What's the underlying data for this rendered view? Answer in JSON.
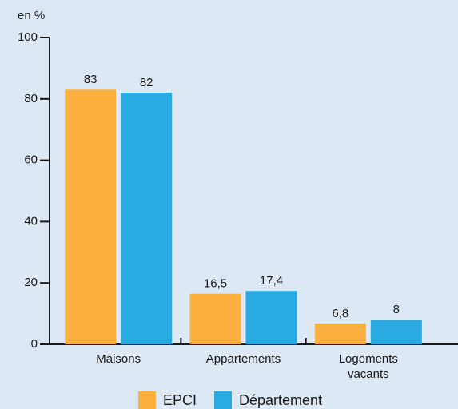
{
  "chart_data": {
    "type": "bar",
    "y_axis_label": "en %",
    "categories": [
      "Maisons",
      "Appartements",
      "Logements vacants"
    ],
    "series": [
      {
        "name": "EPCI",
        "color": "#fbb03f",
        "values": [
          83,
          16.5,
          6.8
        ],
        "value_labels": [
          "83",
          "16,5",
          "6,8"
        ]
      },
      {
        "name": "Département",
        "color": "#29abe2",
        "values": [
          82,
          17.4,
          8
        ],
        "value_labels": [
          "82",
          "17,4",
          "8"
        ]
      }
    ],
    "ylim": [
      0,
      100
    ],
    "yticks": [
      0,
      20,
      40,
      60,
      80,
      100
    ],
    "grid": false
  }
}
